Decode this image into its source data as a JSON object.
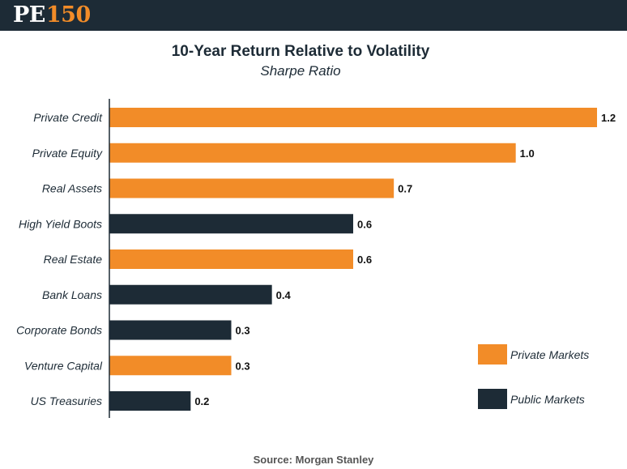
{
  "logo": {
    "letters": "PE",
    "number": "150"
  },
  "colors": {
    "private": "#f28c28",
    "public": "#1d2b36",
    "header": "#1d2b36"
  },
  "chart_data": {
    "type": "bar",
    "orientation": "horizontal",
    "title": "10-Year Return Relative to Volatility",
    "subtitle": "Sharpe Ratio",
    "xlabel": "",
    "ylabel": "",
    "xlim": [
      0,
      1.2
    ],
    "grid": false,
    "categories": [
      "Private Credit",
      "Private Equity",
      "Real Assets",
      "High Yield Boots",
      "Real Estate",
      "Bank Loans",
      "Corporate Bonds",
      "Venture Capital",
      "US Treasuries"
    ],
    "values": [
      1.2,
      1.0,
      0.7,
      0.6,
      0.6,
      0.4,
      0.3,
      0.3,
      0.2
    ],
    "value_labels": [
      "1.2",
      "1.0",
      "0.7",
      "0.6",
      "0.6",
      "0.4",
      "0.3",
      "0.3",
      "0.2"
    ],
    "groups": [
      "private",
      "private",
      "private",
      "public",
      "private",
      "public",
      "public",
      "private",
      "public"
    ],
    "legend": [
      {
        "key": "private",
        "label": "Private Markets"
      },
      {
        "key": "public",
        "label": "Public Markets"
      }
    ],
    "legend_position": "bottom-right"
  },
  "source": {
    "prefix": "Source:",
    "name": "Morgan Stanley"
  }
}
